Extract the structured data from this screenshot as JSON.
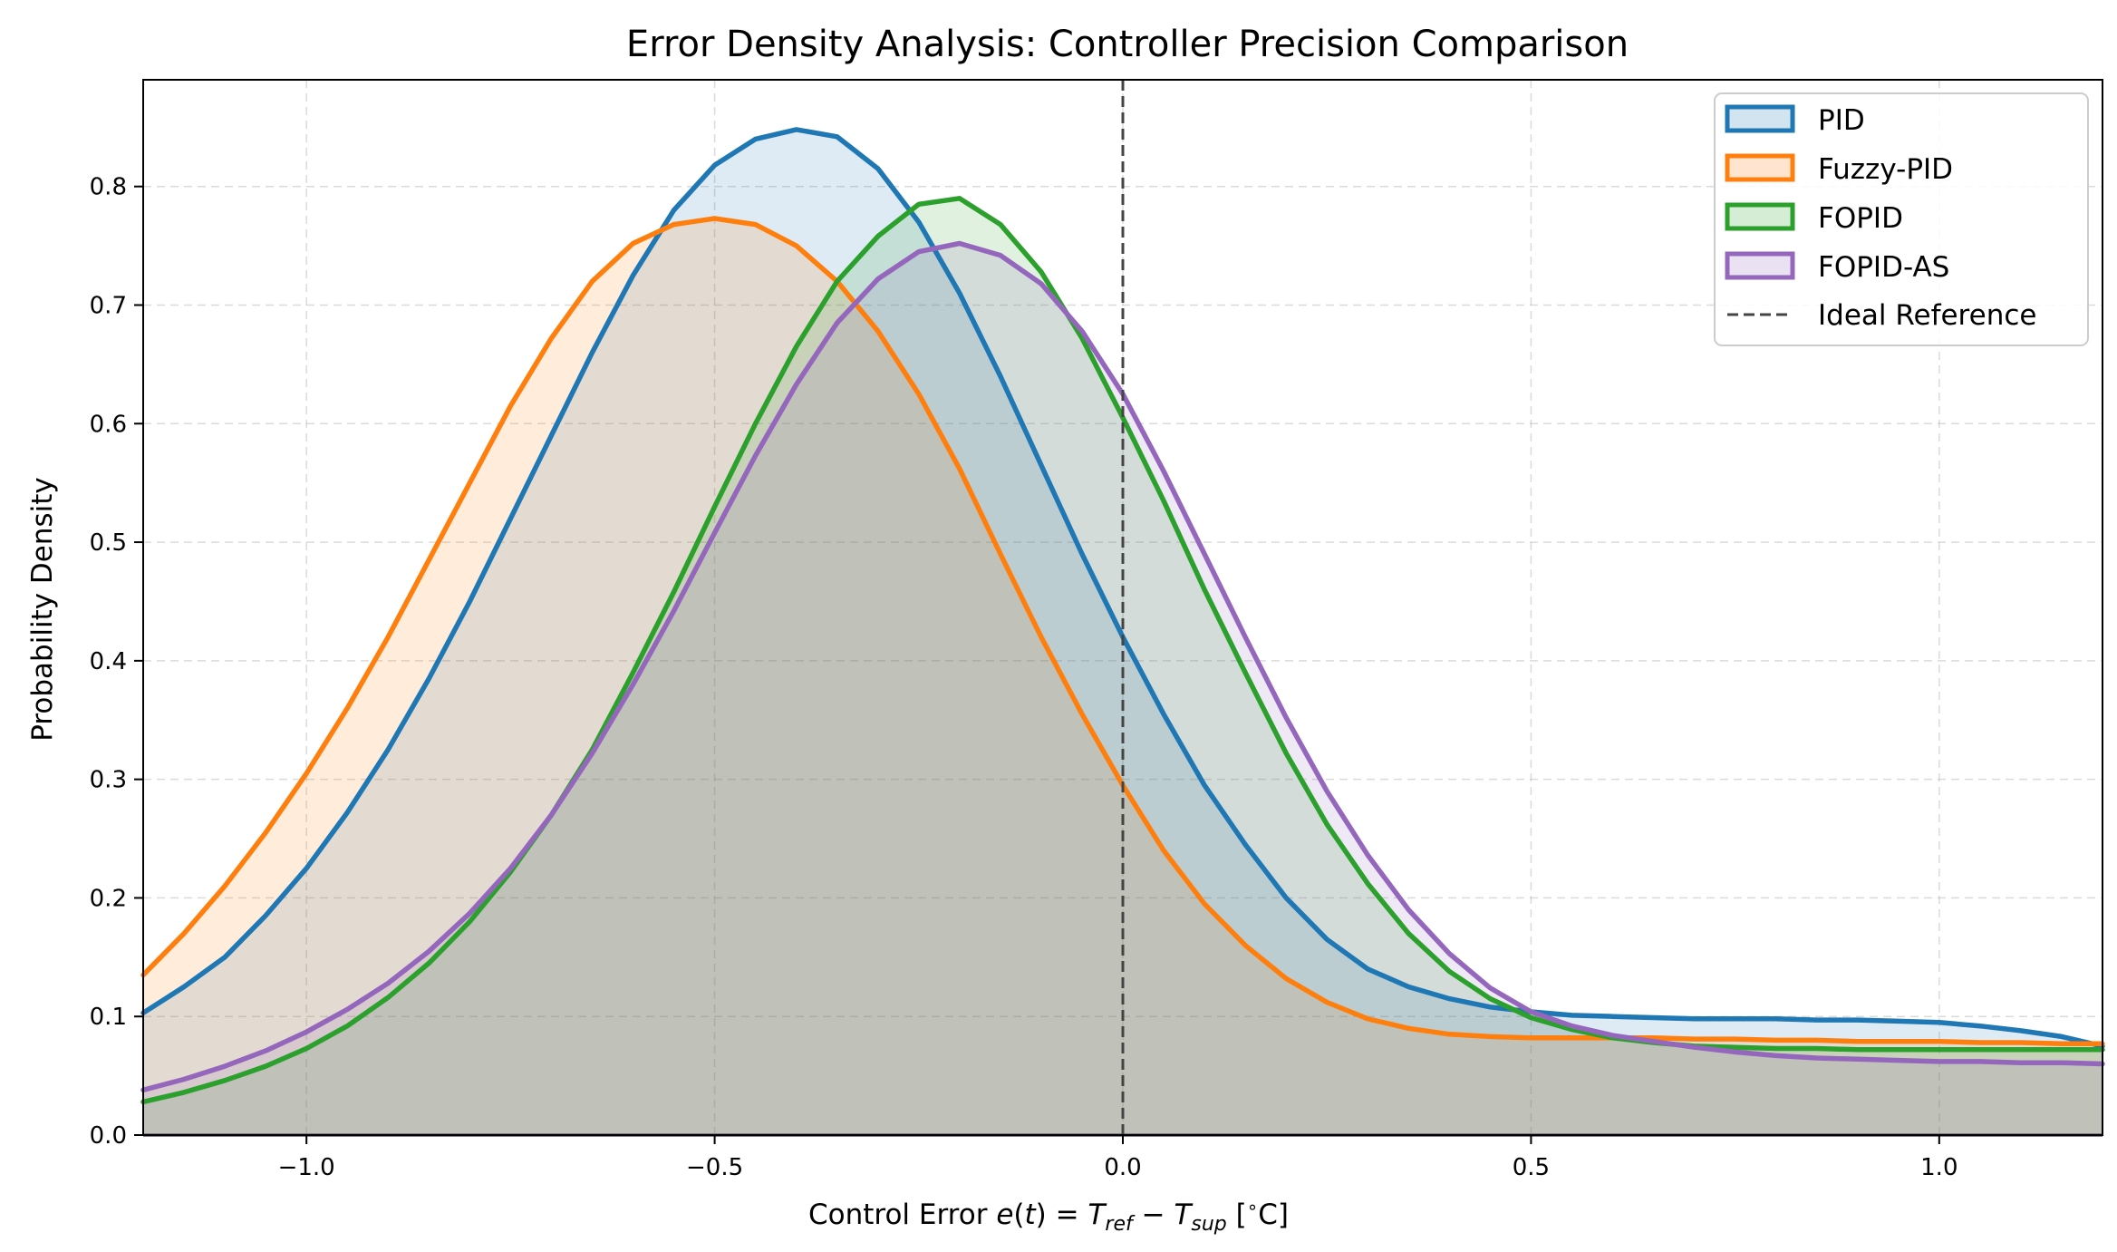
{
  "chart_data": {
    "type": "area",
    "title": "Error Density Analysis: Controller Precision Comparison",
    "xlabel": "Control Error",
    "xlabel_math": {
      "func": "e",
      "arg": "t",
      "eq": "=",
      "t1": "T",
      "s1": "ref",
      "minus": "−",
      "t2": "T",
      "s2": "sup",
      "unit_open": "[",
      "unit_deg": "∘",
      "unit_c": "C",
      "unit_close": "]"
    },
    "ylabel": "Probability Density",
    "xlim": [
      -1.2,
      1.2
    ],
    "ylim": [
      0.0,
      0.89
    ],
    "x_ticks": [
      -1.0,
      -0.5,
      0.0,
      0.5,
      1.0
    ],
    "x_tick_labels": [
      "−1.0",
      "−0.5",
      "0.0",
      "0.5",
      "1.0"
    ],
    "y_ticks": [
      0.0,
      0.1,
      0.2,
      0.3,
      0.4,
      0.5,
      0.6,
      0.7,
      0.8
    ],
    "y_tick_labels": [
      "0.0",
      "0.1",
      "0.2",
      "0.3",
      "0.4",
      "0.5",
      "0.6",
      "0.7",
      "0.8"
    ],
    "grid": true,
    "legend_position": "top-right",
    "series": [
      {
        "name": "PID",
        "color": "#1f77b4",
        "x": [
          -1.2,
          -1.15,
          -1.1,
          -1.05,
          -1.0,
          -0.95,
          -0.9,
          -0.85,
          -0.8,
          -0.75,
          -0.7,
          -0.65,
          -0.6,
          -0.55,
          -0.5,
          -0.45,
          -0.4,
          -0.35,
          -0.3,
          -0.25,
          -0.2,
          -0.15,
          -0.1,
          -0.05,
          0.0,
          0.05,
          0.1,
          0.15,
          0.2,
          0.25,
          0.3,
          0.35,
          0.4,
          0.45,
          0.5,
          0.55,
          0.6,
          0.65,
          0.7,
          0.75,
          0.8,
          0.85,
          0.9,
          0.95,
          1.0,
          1.05,
          1.1,
          1.15,
          1.2
        ],
        "y": [
          0.103,
          0.125,
          0.15,
          0.185,
          0.225,
          0.272,
          0.325,
          0.385,
          0.45,
          0.52,
          0.59,
          0.66,
          0.725,
          0.78,
          0.818,
          0.84,
          0.848,
          0.842,
          0.815,
          0.77,
          0.71,
          0.64,
          0.565,
          0.49,
          0.42,
          0.355,
          0.295,
          0.245,
          0.2,
          0.165,
          0.14,
          0.125,
          0.115,
          0.108,
          0.104,
          0.101,
          0.1,
          0.099,
          0.098,
          0.098,
          0.098,
          0.097,
          0.097,
          0.096,
          0.095,
          0.092,
          0.088,
          0.083,
          0.075
        ]
      },
      {
        "name": "Fuzzy-PID",
        "color": "#ff7f0e",
        "x": [
          -1.2,
          -1.15,
          -1.1,
          -1.05,
          -1.0,
          -0.95,
          -0.9,
          -0.85,
          -0.8,
          -0.75,
          -0.7,
          -0.65,
          -0.6,
          -0.55,
          -0.5,
          -0.45,
          -0.4,
          -0.35,
          -0.3,
          -0.25,
          -0.2,
          -0.15,
          -0.1,
          -0.05,
          0.0,
          0.05,
          0.1,
          0.15,
          0.2,
          0.25,
          0.3,
          0.35,
          0.4,
          0.45,
          0.5,
          0.55,
          0.6,
          0.65,
          0.7,
          0.75,
          0.8,
          0.85,
          0.9,
          0.95,
          1.0,
          1.05,
          1.1,
          1.15,
          1.2
        ],
        "y": [
          0.135,
          0.17,
          0.21,
          0.255,
          0.305,
          0.36,
          0.42,
          0.485,
          0.55,
          0.615,
          0.672,
          0.72,
          0.752,
          0.768,
          0.773,
          0.768,
          0.75,
          0.72,
          0.678,
          0.625,
          0.562,
          0.49,
          0.42,
          0.355,
          0.295,
          0.24,
          0.195,
          0.16,
          0.132,
          0.112,
          0.098,
          0.09,
          0.085,
          0.083,
          0.082,
          0.082,
          0.082,
          0.082,
          0.081,
          0.081,
          0.08,
          0.08,
          0.079,
          0.079,
          0.079,
          0.078,
          0.078,
          0.077,
          0.077
        ]
      },
      {
        "name": "FOPID",
        "color": "#2ca02c",
        "x": [
          -1.2,
          -1.15,
          -1.1,
          -1.05,
          -1.0,
          -0.95,
          -0.9,
          -0.85,
          -0.8,
          -0.75,
          -0.7,
          -0.65,
          -0.6,
          -0.55,
          -0.5,
          -0.45,
          -0.4,
          -0.35,
          -0.3,
          -0.25,
          -0.2,
          -0.15,
          -0.1,
          -0.05,
          0.0,
          0.05,
          0.1,
          0.15,
          0.2,
          0.25,
          0.3,
          0.35,
          0.4,
          0.45,
          0.5,
          0.55,
          0.6,
          0.65,
          0.7,
          0.75,
          0.8,
          0.85,
          0.9,
          0.95,
          1.0,
          1.05,
          1.1,
          1.15,
          1.2
        ],
        "y": [
          0.028,
          0.036,
          0.046,
          0.058,
          0.073,
          0.092,
          0.116,
          0.145,
          0.18,
          0.222,
          0.27,
          0.325,
          0.39,
          0.458,
          0.53,
          0.6,
          0.665,
          0.72,
          0.758,
          0.785,
          0.79,
          0.768,
          0.728,
          0.672,
          0.605,
          0.535,
          0.46,
          0.39,
          0.322,
          0.262,
          0.212,
          0.17,
          0.138,
          0.115,
          0.099,
          0.089,
          0.082,
          0.078,
          0.075,
          0.074,
          0.073,
          0.073,
          0.072,
          0.072,
          0.072,
          0.072,
          0.072,
          0.072,
          0.072
        ]
      },
      {
        "name": "FOPID-AS",
        "color": "#9467bd",
        "x": [
          -1.2,
          -1.15,
          -1.1,
          -1.05,
          -1.0,
          -0.95,
          -0.9,
          -0.85,
          -0.8,
          -0.75,
          -0.7,
          -0.65,
          -0.6,
          -0.55,
          -0.5,
          -0.45,
          -0.4,
          -0.35,
          -0.3,
          -0.25,
          -0.2,
          -0.15,
          -0.1,
          -0.05,
          0.0,
          0.05,
          0.1,
          0.15,
          0.2,
          0.25,
          0.3,
          0.35,
          0.4,
          0.45,
          0.5,
          0.55,
          0.6,
          0.65,
          0.7,
          0.75,
          0.8,
          0.85,
          0.9,
          0.95,
          1.0,
          1.05,
          1.1,
          1.15,
          1.2
        ],
        "y": [
          0.038,
          0.047,
          0.058,
          0.071,
          0.087,
          0.106,
          0.128,
          0.155,
          0.187,
          0.225,
          0.27,
          0.322,
          0.38,
          0.442,
          0.508,
          0.573,
          0.633,
          0.685,
          0.722,
          0.745,
          0.752,
          0.742,
          0.718,
          0.678,
          0.625,
          0.56,
          0.49,
          0.42,
          0.352,
          0.29,
          0.236,
          0.19,
          0.153,
          0.124,
          0.104,
          0.092,
          0.084,
          0.079,
          0.074,
          0.07,
          0.067,
          0.065,
          0.064,
          0.063,
          0.062,
          0.062,
          0.061,
          0.061,
          0.06
        ]
      }
    ],
    "reference_line": {
      "name": "Ideal Reference",
      "x": 0.0,
      "color": "#444444"
    }
  }
}
